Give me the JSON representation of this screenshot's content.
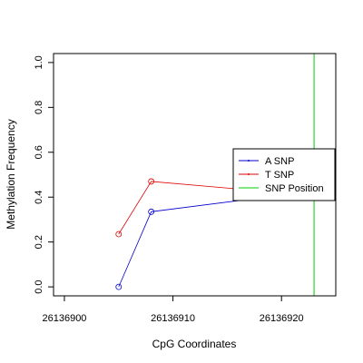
{
  "chart_data": {
    "type": "line",
    "xlabel": "CpG Coordinates",
    "ylabel": "Methylation Frequency",
    "xlim": [
      26136899,
      26136925
    ],
    "ylim": [
      -0.04,
      1.04
    ],
    "x_ticks": [
      26136900,
      26136910,
      26136920
    ],
    "y_ticks": [
      0.0,
      0.2,
      0.4,
      0.6,
      0.8,
      1.0
    ],
    "x_tick_labels": [
      "26136900",
      "26136910",
      "26136920"
    ],
    "y_tick_labels": [
      "0.0",
      "0.2",
      "0.4",
      "0.6",
      "0.8",
      "1.0"
    ],
    "grid": false,
    "legend_position": "right",
    "series": [
      {
        "name": "A SNP",
        "color": "#0000cc",
        "x": [
          26136905,
          26136908,
          26136921
        ],
        "y": [
          0.0,
          0.335,
          0.415
        ]
      },
      {
        "name": "T SNP",
        "color": "#dd0000",
        "x": [
          26136905,
          26136908,
          26136921
        ],
        "y": [
          0.235,
          0.47,
          0.415
        ]
      }
    ],
    "vline": {
      "name": "SNP Position",
      "color": "#00cc00",
      "x": 26136923
    }
  }
}
